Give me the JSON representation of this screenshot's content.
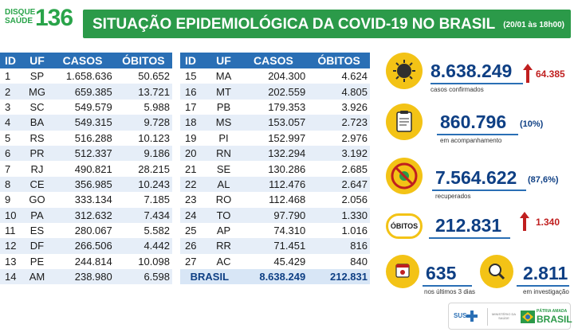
{
  "brand": {
    "disque_line1": "DISQUE",
    "disque_line2": "SAÚDE",
    "disque_number": "136"
  },
  "header": {
    "title": "SITUAÇÃO EPIDEMIOLÓGICA DA COVID-19 NO BRASIL",
    "date": "(20/01 às 18h00)"
  },
  "table": {
    "columns": [
      "ID",
      "UF",
      "CASOS",
      "ÓBITOS"
    ],
    "left_rows": [
      [
        "1",
        "SP",
        "1.658.636",
        "50.652"
      ],
      [
        "2",
        "MG",
        "659.385",
        "13.721"
      ],
      [
        "3",
        "SC",
        "549.579",
        "5.988"
      ],
      [
        "4",
        "BA",
        "549.315",
        "9.728"
      ],
      [
        "5",
        "RS",
        "516.288",
        "10.123"
      ],
      [
        "6",
        "PR",
        "512.337",
        "9.186"
      ],
      [
        "7",
        "RJ",
        "490.821",
        "28.215"
      ],
      [
        "8",
        "CE",
        "356.985",
        "10.243"
      ],
      [
        "9",
        "GO",
        "333.134",
        "7.185"
      ],
      [
        "10",
        "PA",
        "312.632",
        "7.434"
      ],
      [
        "11",
        "ES",
        "280.067",
        "5.582"
      ],
      [
        "12",
        "DF",
        "266.506",
        "4.442"
      ],
      [
        "13",
        "PE",
        "244.814",
        "10.098"
      ],
      [
        "14",
        "AM",
        "238.980",
        "6.598"
      ]
    ],
    "right_rows": [
      [
        "15",
        "MA",
        "204.300",
        "4.624"
      ],
      [
        "16",
        "MT",
        "202.559",
        "4.805"
      ],
      [
        "17",
        "PB",
        "179.353",
        "3.926"
      ],
      [
        "18",
        "MS",
        "153.057",
        "2.723"
      ],
      [
        "19",
        "PI",
        "152.997",
        "2.976"
      ],
      [
        "20",
        "RN",
        "132.294",
        "3.192"
      ],
      [
        "21",
        "SE",
        "130.286",
        "2.685"
      ],
      [
        "22",
        "AL",
        "112.476",
        "2.647"
      ],
      [
        "23",
        "RO",
        "112.468",
        "2.056"
      ],
      [
        "24",
        "TO",
        "97.790",
        "1.330"
      ],
      [
        "25",
        "AP",
        "74.310",
        "1.016"
      ],
      [
        "26",
        "RR",
        "71.451",
        "816"
      ],
      [
        "27",
        "AC",
        "45.429",
        "840"
      ]
    ],
    "total": {
      "label": "BRASIL",
      "casos": "8.638.249",
      "obitos": "212.831"
    }
  },
  "stats": {
    "confirmados": {
      "value": "8.638.249",
      "delta": "64.385",
      "label": "casos confirmados",
      "icon": "virus-icon"
    },
    "acompanhamento": {
      "value": "860.796",
      "pct": "(10%)",
      "label": "em acompanhamento",
      "icon": "clipboard-icon"
    },
    "recuperados": {
      "value": "7.564.622",
      "pct": "(87,6%)",
      "label": "recuperados",
      "icon": "crossed-virus-icon"
    },
    "obitos": {
      "badge": "ÓBITOS",
      "value": "212.831",
      "delta": "1.340"
    },
    "ultimos3": {
      "value": "635",
      "label": "nos últimos 3 dias",
      "icon": "calendar-icon"
    },
    "investigacao": {
      "value": "2.811",
      "label": "em investigação",
      "icon": "magnifier-icon"
    }
  },
  "footer": {
    "sus": "SUS",
    "ministerio": "MINISTÉRIO DA SAÚDE",
    "patria_line1": "PÁTRIA AMADA",
    "patria_line2": "BRASIL"
  },
  "colors": {
    "green": "#2b9a49",
    "blue": "#2a6fb5",
    "navy": "#0e3f84",
    "yellow": "#f3c316",
    "red": "#c01f1f"
  }
}
